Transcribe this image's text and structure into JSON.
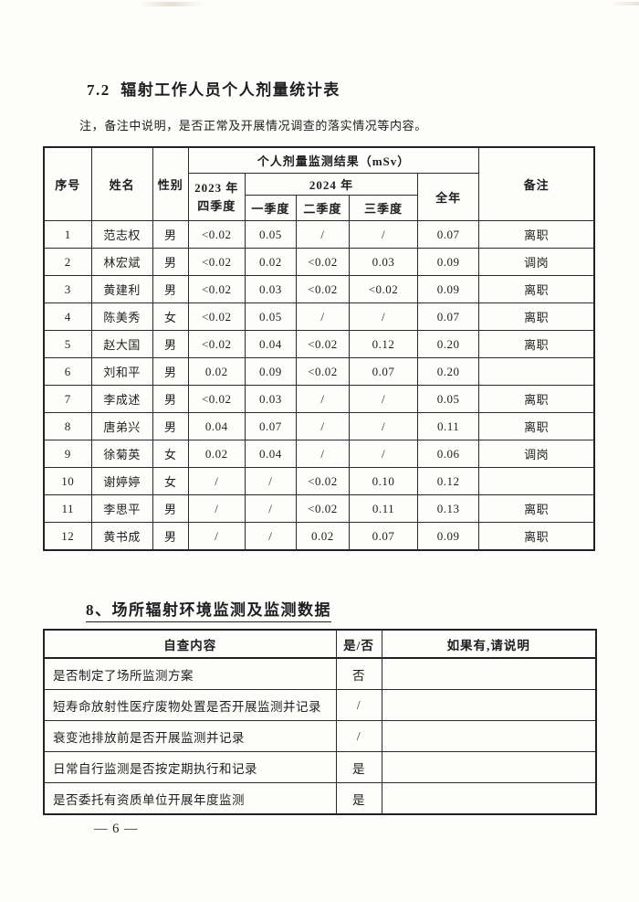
{
  "page": {
    "footer": "— 6 —"
  },
  "section7": {
    "title": "7.2  辐射工作人员个人剂量统计表",
    "note": "注，备注中说明，是否正常及开展情况调查的落实情况等内容。"
  },
  "dose_table": {
    "headers": {
      "seq": "序号",
      "name": "姓名",
      "gender": "性别",
      "result_group": "个人剂量监测结果（mSv）",
      "q4_2023_line1": "2023 年",
      "q4_2023_line2": "四季度",
      "y2024": "2024 年",
      "q1": "一季度",
      "q2": "二季度",
      "q3": "三季度",
      "total": "全年",
      "remark": "备注"
    },
    "rows": [
      {
        "seq": "1",
        "name": "范志权",
        "gender": "男",
        "q4_2023": "<0.02",
        "q1": "0.05",
        "q2": "/",
        "q3": "/",
        "total": "0.07",
        "remark": "离职"
      },
      {
        "seq": "2",
        "name": "林宏斌",
        "gender": "男",
        "q4_2023": "<0.02",
        "q1": "0.02",
        "q2": "<0.02",
        "q3": "0.03",
        "total": "0.09",
        "remark": "调岗"
      },
      {
        "seq": "3",
        "name": "黄建利",
        "gender": "男",
        "q4_2023": "<0.02",
        "q1": "0.03",
        "q2": "<0.02",
        "q3": "<0.02",
        "total": "0.09",
        "remark": "离职"
      },
      {
        "seq": "4",
        "name": "陈美秀",
        "gender": "女",
        "q4_2023": "<0.02",
        "q1": "0.05",
        "q2": "/",
        "q3": "/",
        "total": "0.07",
        "remark": "离职"
      },
      {
        "seq": "5",
        "name": "赵大国",
        "gender": "男",
        "q4_2023": "<0.02",
        "q1": "0.04",
        "q2": "<0.02",
        "q3": "0.12",
        "total": "0.20",
        "remark": "离职"
      },
      {
        "seq": "6",
        "name": "刘和平",
        "gender": "男",
        "q4_2023": "0.02",
        "q1": "0.09",
        "q2": "<0.02",
        "q3": "0.07",
        "total": "0.20",
        "remark": ""
      },
      {
        "seq": "7",
        "name": "李成述",
        "gender": "男",
        "q4_2023": "<0.02",
        "q1": "0.03",
        "q2": "/",
        "q3": "/",
        "total": "0.05",
        "remark": "离职"
      },
      {
        "seq": "8",
        "name": "唐弟兴",
        "gender": "男",
        "q4_2023": "0.04",
        "q1": "0.07",
        "q2": "/",
        "q3": "/",
        "total": "0.11",
        "remark": "离职"
      },
      {
        "seq": "9",
        "name": "徐菊英",
        "gender": "女",
        "q4_2023": "0.02",
        "q1": "0.04",
        "q2": "/",
        "q3": "/",
        "total": "0.06",
        "remark": "调岗"
      },
      {
        "seq": "10",
        "name": "谢婷婷",
        "gender": "女",
        "q4_2023": "/",
        "q1": "/",
        "q2": "<0.02",
        "q3": "0.10",
        "total": "0.12",
        "remark": ""
      },
      {
        "seq": "11",
        "name": "李思平",
        "gender": "男",
        "q4_2023": "/",
        "q1": "/",
        "q2": "<0.02",
        "q3": "0.11",
        "total": "0.13",
        "remark": "离职"
      },
      {
        "seq": "12",
        "name": "黄书成",
        "gender": "男",
        "q4_2023": "/",
        "q1": "/",
        "q2": "0.02",
        "q3": "0.07",
        "total": "0.09",
        "remark": "离职"
      }
    ]
  },
  "section8": {
    "title": "8、场所辐射环境监测及监测数据"
  },
  "check_table": {
    "headers": {
      "content": "自查内容",
      "yn": "是/否",
      "note": "如果有,请说明"
    },
    "rows": [
      {
        "content": "是否制定了场所监测方案",
        "yn": "否",
        "note": ""
      },
      {
        "content": "短寿命放射性医疗废物处置是否开展监测并记录",
        "yn": "/",
        "note": ""
      },
      {
        "content": "衰变池排放前是否开展监测并记录",
        "yn": "/",
        "note": ""
      },
      {
        "content": "日常自行监测是否按定期执行和记录",
        "yn": "是",
        "note": ""
      },
      {
        "content": "是否委托有资质单位开展年度监测",
        "yn": "是",
        "note": ""
      }
    ]
  }
}
